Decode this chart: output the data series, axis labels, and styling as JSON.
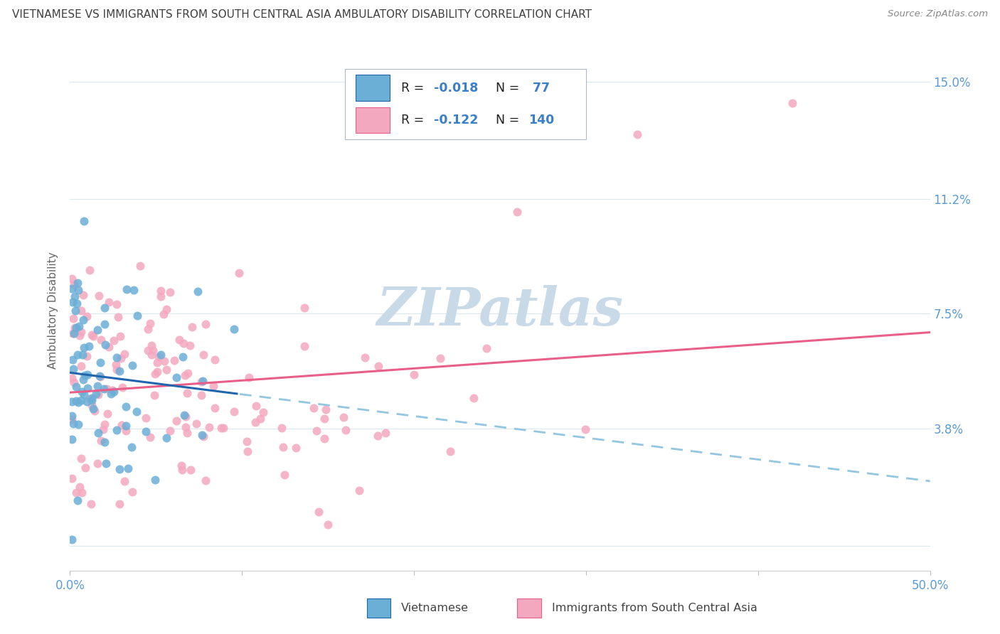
{
  "title": "VIETNAMESE VS IMMIGRANTS FROM SOUTH CENTRAL ASIA AMBULATORY DISABILITY CORRELATION CHART",
  "source": "Source: ZipAtlas.com",
  "ylabel": "Ambulatory Disability",
  "yticks": [
    0.0,
    0.038,
    0.075,
    0.112,
    0.15
  ],
  "ytick_labels": [
    "",
    "3.8%",
    "7.5%",
    "11.2%",
    "15.0%"
  ],
  "xlim": [
    0.0,
    0.5
  ],
  "ylim": [
    -0.008,
    0.16
  ],
  "legend_r1_black": "R = ",
  "legend_r1_blue": "-0.018",
  "legend_n1_black": "N = ",
  "legend_n1_blue": " 77",
  "legend_r2_black": "R = ",
  "legend_r2_blue": "-0.122",
  "legend_n2_black": "N = ",
  "legend_n2_blue": "140",
  "color_blue": "#6baed6",
  "color_pink": "#f4a8c0",
  "trendline_blue_solid": "#2166ac",
  "trendline_blue_dashed": "#93c6e0",
  "trendline_pink": "#e8608a",
  "watermark_color": "#c8dae8",
  "title_color": "#404040",
  "axis_label_color": "#5b9bd5",
  "grid_color": "#dce8f0",
  "source_color": "#888888",
  "ylabel_color": "#666666",
  "bottom_label_color": "#444444",
  "legend_text_color": "#333333",
  "legend_blue_text": "#3b7fc4",
  "scatter_alpha": 0.85,
  "scatter_size": 75
}
